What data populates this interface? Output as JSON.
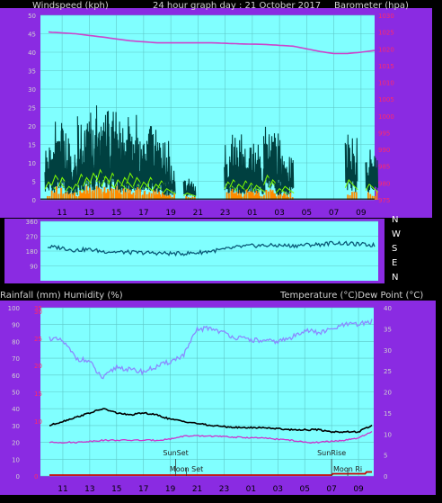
{
  "colors": {
    "background": "#000000",
    "frame": "#8a2be2",
    "plot_bg": "#80ffff",
    "grid": "#5ec8c8",
    "wind": "#000000",
    "gust": "#004040",
    "wind_avg": "#80ff00",
    "wind_bar": "#ff8c00",
    "barometer": "#cc44cc",
    "direction": "#0a5a78",
    "humidity": "#8a8aff",
    "temperature": "#000000",
    "dew_point": "#cc33cc",
    "rain": "#cc0000",
    "text_light": "#d0d0d0",
    "text_dark": "#000000",
    "text_pink": "#ff2a6a"
  },
  "chart_data": [
    {
      "id": "wind-baro",
      "type": "line",
      "title": "24 hour graph day : 21 October 2017",
      "left_label": "Windspeed (kph)",
      "right_label": "Barometer (hpa)",
      "x_ticks": [
        "11",
        "13",
        "15",
        "17",
        "19",
        "21",
        "23",
        "01",
        "03",
        "05",
        "07",
        "09"
      ],
      "ylim_left": [
        0,
        50
      ],
      "y_ticks_left": [
        "0",
        "5",
        "10",
        "15",
        "20",
        "25",
        "30",
        "35",
        "40",
        "45",
        "50"
      ],
      "ylim_right": [
        975,
        1030
      ],
      "y_ticks_right": [
        "975",
        "980",
        "985",
        "990",
        "995",
        "1000",
        "1005",
        "1010",
        "1015",
        "1020",
        "1025",
        "1030"
      ],
      "series": [
        {
          "key": "barometer",
          "axis": "right",
          "hours": [
            0,
            2,
            4,
            6,
            8,
            10,
            12,
            14,
            16,
            18,
            19,
            20,
            21,
            22,
            23,
            24
          ],
          "values": [
            1025,
            1024.5,
            1023.5,
            1022.4,
            1021.8,
            1021.8,
            1021.8,
            1021.5,
            1021.3,
            1020.8,
            1020,
            1019.2,
            1018.6,
            1018.6,
            1019,
            1019.5
          ]
        }
      ],
      "wind_bursts": [
        {
          "hour": 0.2,
          "peak": 16
        },
        {
          "hour": 0.7,
          "peak": 22
        },
        {
          "hour": 1.2,
          "peak": 20
        },
        {
          "hour": 1.7,
          "peak": 12
        },
        {
          "hour": 2.2,
          "peak": 14
        },
        {
          "hour": 2.6,
          "peak": 23
        },
        {
          "hour": 3.0,
          "peak": 20
        },
        {
          "hour": 3.5,
          "peak": 24
        },
        {
          "hour": 4.0,
          "peak": 27
        },
        {
          "hour": 4.4,
          "peak": 21
        },
        {
          "hour": 4.9,
          "peak": 24
        },
        {
          "hour": 5.3,
          "peak": 18
        },
        {
          "hour": 5.8,
          "peak": 20
        },
        {
          "hour": 6.2,
          "peak": 24
        },
        {
          "hour": 6.7,
          "peak": 20
        },
        {
          "hour": 7.2,
          "peak": 16
        },
        {
          "hour": 7.7,
          "peak": 20
        },
        {
          "hour": 8.1,
          "peak": 14
        },
        {
          "hour": 8.5,
          "peak": 17
        },
        {
          "hour": 8.9,
          "peak": 10
        },
        {
          "hour": 10.4,
          "peak": 6
        },
        {
          "hour": 13.4,
          "peak": 16
        },
        {
          "hour": 13.8,
          "peak": 18
        },
        {
          "hour": 14.2,
          "peak": 14
        },
        {
          "hour": 14.7,
          "peak": 17
        },
        {
          "hour": 15.1,
          "peak": 15
        },
        {
          "hour": 15.5,
          "peak": 13
        },
        {
          "hour": 16.3,
          "peak": 22
        },
        {
          "hour": 16.7,
          "peak": 18
        },
        {
          "hour": 17.2,
          "peak": 10
        },
        {
          "hour": 17.6,
          "peak": 12
        },
        {
          "hour": 22.3,
          "peak": 18
        },
        {
          "hour": 23.8,
          "peak": 14
        }
      ]
    },
    {
      "id": "direction",
      "type": "line",
      "left_ticks": [
        "360",
        "270",
        "180",
        "90"
      ],
      "ylim": [
        0,
        360
      ],
      "right_labels": [
        "N",
        "W",
        "S",
        "E",
        "N"
      ],
      "series": [
        {
          "key": "direction",
          "hours": [
            0,
            1,
            2,
            3,
            4,
            5,
            6,
            7,
            8,
            9,
            10,
            11,
            12,
            13,
            14,
            15,
            16,
            17,
            18,
            19,
            20,
            21,
            22,
            23,
            24
          ],
          "values": [
            205,
            200,
            185,
            190,
            178,
            175,
            172,
            170,
            168,
            165,
            165,
            170,
            180,
            190,
            205,
            212,
            214,
            214,
            212,
            218,
            220,
            230,
            225,
            220,
            215
          ]
        }
      ]
    },
    {
      "id": "temp-hum",
      "type": "line",
      "left_label": "Rainfall (mm)  Humidity (%)",
      "right_label": "Temperature (°C)Dew Point (°C)",
      "x_ticks": [
        "11",
        "13",
        "15",
        "17",
        "19",
        "21",
        "23",
        "01",
        "03",
        "05",
        "07",
        "09"
      ],
      "ylim_humidity": [
        0,
        100
      ],
      "humidity_ticks": [
        "0",
        "10",
        "20",
        "30",
        "40",
        "50",
        "60",
        "70",
        "80",
        "90",
        "100"
      ],
      "rain_ticks": [
        "0",
        "10",
        "15",
        "20",
        "25",
        "30",
        "35"
      ],
      "ylim_temp": [
        0,
        40
      ],
      "temp_ticks": [
        "0",
        "5",
        "10",
        "15",
        "20",
        "25",
        "30",
        "35",
        "40"
      ],
      "markers": [
        {
          "label": "SunSet",
          "hour": 9.4
        },
        {
          "label": "Moon Set",
          "hour": 10.2
        },
        {
          "label": "SunRise",
          "hour": 21.0
        },
        {
          "label": "Moon Ri",
          "hour": 22.2
        }
      ],
      "series": [
        {
          "key": "humidity",
          "hours": [
            0,
            1,
            2,
            3,
            3.5,
            4,
            5,
            6,
            7,
            8,
            9,
            10,
            11,
            12,
            14,
            16,
            17,
            18,
            19,
            20,
            21,
            22,
            23,
            24
          ],
          "values": [
            82,
            80,
            70,
            68,
            62,
            58,
            65,
            63,
            62,
            65,
            68,
            72,
            87,
            88,
            82,
            80,
            80,
            82,
            87,
            85,
            87,
            90,
            90,
            92
          ]
        },
        {
          "key": "temperature",
          "hours": [
            0,
            1,
            2,
            3,
            4,
            5,
            6,
            7,
            8,
            9,
            10,
            11,
            12,
            14,
            16,
            18,
            20,
            21,
            22,
            23,
            24
          ],
          "values": [
            12,
            13,
            14,
            15,
            16,
            15,
            14.5,
            15,
            14.5,
            13.5,
            13,
            12.5,
            12,
            11.5,
            11.5,
            11,
            11,
            10.5,
            10.5,
            10.5,
            12
          ]
        },
        {
          "key": "dew_point",
          "hours": [
            0,
            2,
            4,
            6,
            8,
            9,
            10,
            11,
            12,
            14,
            16,
            18,
            19,
            20,
            22,
            23,
            24
          ],
          "values": [
            8,
            8,
            8.5,
            8.5,
            8.5,
            8.8,
            9.5,
            9.5,
            9.5,
            9.2,
            9,
            8.5,
            8,
            8,
            8.5,
            9,
            10.5
          ]
        },
        {
          "key": "rain",
          "hours": [
            0,
            21,
            21.01,
            23.5,
            23.51,
            24
          ],
          "values": [
            0,
            0,
            0.6,
            0.6,
            1.4,
            1.4
          ]
        }
      ]
    }
  ]
}
